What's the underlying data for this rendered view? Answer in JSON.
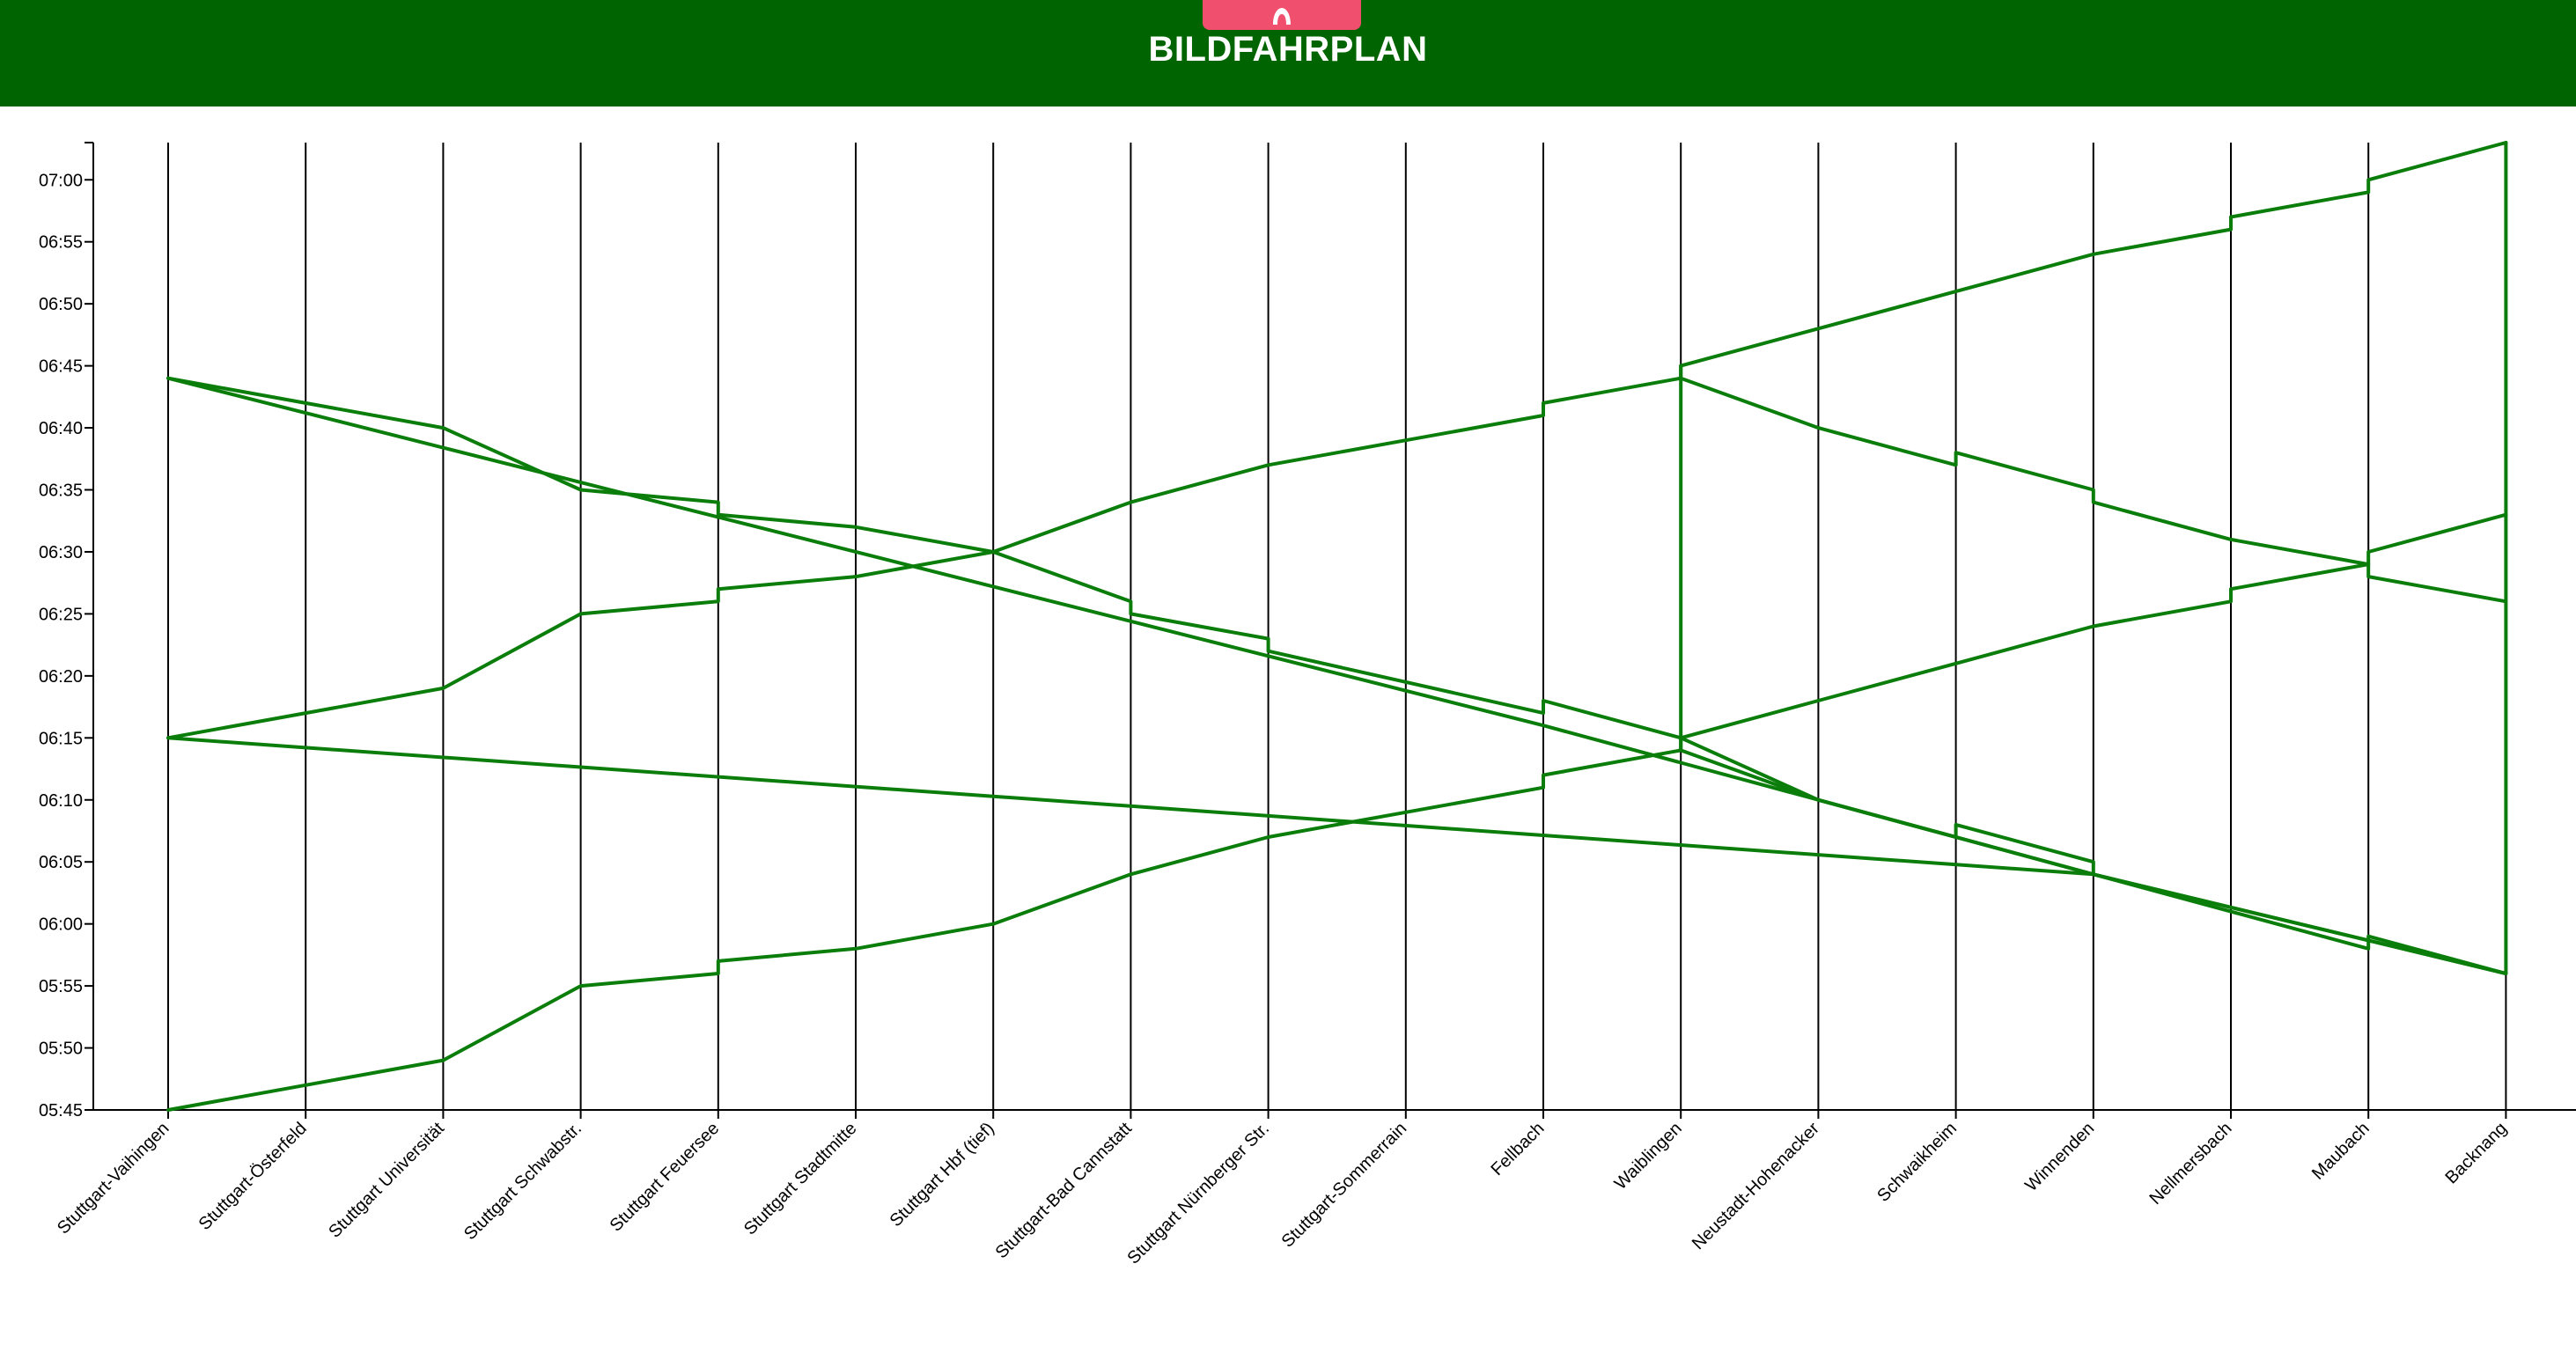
{
  "header": {
    "title": "BILDFAHRPLAN",
    "logo_icon": "tram-logo-icon",
    "background_color": "#006400",
    "logo_color": "#f0506e"
  },
  "chart_data": {
    "type": "line",
    "title": "",
    "xlabel": "",
    "ylabel": "",
    "stations": [
      "Stuttgart-Vaihingen",
      "Stuttgart-Österfeld",
      "Stuttgart Universität",
      "Stuttgart Schwabstr.",
      "Stuttgart Feuersee",
      "Stuttgart Stadtmitte",
      "Stuttgart Hbf (tief)",
      "Stuttgart-Bad Cannstatt",
      "Stuttgart Nürnberger Str.",
      "Stuttgart-Sommerrain",
      "Fellbach",
      "Waiblingen",
      "Neustadt-Hohenacker",
      "Schwaikheim",
      "Winnenden",
      "Nellmersbach",
      "Maubach",
      "Backnang"
    ],
    "y_ticks": [
      "05:45",
      "05:50",
      "05:55",
      "06:00",
      "06:05",
      "06:10",
      "06:15",
      "06:20",
      "06:25",
      "06:30",
      "06:35",
      "06:40",
      "06:45",
      "06:50",
      "06:55",
      "07:00"
    ],
    "ylim": [
      "05:45",
      "07:03"
    ],
    "line_color": "#0a7d0a",
    "grid": "vertical lines at stations",
    "series": [
      {
        "points": [
          [
            "Stuttgart-Vaihingen",
            "05:45"
          ],
          [
            "Stuttgart-Österfeld",
            "05:47"
          ],
          [
            "Stuttgart Universität",
            "05:49"
          ],
          [
            "Stuttgart Schwabstr.",
            "05:55"
          ],
          [
            "Stuttgart Feuersee",
            "05:56"
          ],
          [
            "Stuttgart Feuersee",
            "05:57"
          ],
          [
            "Stuttgart Stadtmitte",
            "05:58"
          ],
          [
            "Stuttgart Hbf (tief)",
            "06:00"
          ],
          [
            "Stuttgart-Bad Cannstatt",
            "06:04"
          ],
          [
            "Stuttgart Nürnberger Str.",
            "06:07"
          ],
          [
            "Stuttgart-Sommerrain",
            "06:09"
          ],
          [
            "Fellbach",
            "06:11"
          ],
          [
            "Fellbach",
            "06:12"
          ],
          [
            "Waiblingen",
            "06:14"
          ],
          [
            "Waiblingen",
            "06:15"
          ],
          [
            "Neustadt-Hohenacker",
            "06:18"
          ],
          [
            "Schwaikheim",
            "06:21"
          ],
          [
            "Winnenden",
            "06:24"
          ],
          [
            "Nellmersbach",
            "06:26"
          ],
          [
            "Nellmersbach",
            "06:27"
          ],
          [
            "Maubach",
            "06:29"
          ],
          [
            "Maubach",
            "06:30"
          ],
          [
            "Backnang",
            "06:33"
          ]
        ]
      },
      {
        "points": [
          [
            "Stuttgart-Vaihingen",
            "06:15"
          ],
          [
            "Stuttgart-Österfeld",
            "06:17"
          ],
          [
            "Stuttgart Universität",
            "06:19"
          ],
          [
            "Stuttgart Schwabstr.",
            "06:25"
          ],
          [
            "Stuttgart Feuersee",
            "06:26"
          ],
          [
            "Stuttgart Feuersee",
            "06:27"
          ],
          [
            "Stuttgart Stadtmitte",
            "06:28"
          ],
          [
            "Stuttgart Hbf (tief)",
            "06:30"
          ],
          [
            "Stuttgart-Bad Cannstatt",
            "06:34"
          ],
          [
            "Stuttgart Nürnberger Str.",
            "06:37"
          ],
          [
            "Stuttgart-Sommerrain",
            "06:39"
          ],
          [
            "Fellbach",
            "06:41"
          ],
          [
            "Fellbach",
            "06:42"
          ],
          [
            "Waiblingen",
            "06:44"
          ],
          [
            "Waiblingen",
            "06:45"
          ],
          [
            "Neustadt-Hohenacker",
            "06:48"
          ],
          [
            "Schwaikheim",
            "06:51"
          ],
          [
            "Winnenden",
            "06:54"
          ],
          [
            "Nellmersbach",
            "06:56"
          ],
          [
            "Nellmersbach",
            "06:57"
          ],
          [
            "Maubach",
            "06:59"
          ],
          [
            "Maubach",
            "07:00"
          ],
          [
            "Backnang",
            "07:03"
          ]
        ]
      },
      {
        "points": [
          [
            "Backnang",
            "05:56"
          ],
          [
            "Maubach",
            "05:59"
          ],
          [
            "Maubach",
            "05:58"
          ],
          [
            "Nellmersbach",
            "06:01"
          ],
          [
            "Winnenden",
            "06:04"
          ],
          [
            "Winnenden",
            "06:05"
          ],
          [
            "Schwaikheim",
            "06:08"
          ],
          [
            "Schwaikheim",
            "06:07"
          ],
          [
            "Neustadt-Hohenacker",
            "06:10"
          ],
          [
            "Waiblingen",
            "06:14"
          ],
          [
            "Waiblingen",
            "06:15"
          ],
          [
            "Fellbach",
            "06:18"
          ],
          [
            "Fellbach",
            "06:17"
          ],
          [
            "Stuttgart Nürnberger Str.",
            "06:22"
          ],
          [
            "Stuttgart Nürnberger Str.",
            "06:23"
          ],
          [
            "Stuttgart-Bad Cannstatt",
            "06:25"
          ],
          [
            "Stuttgart-Bad Cannstatt",
            "06:26"
          ],
          [
            "Stuttgart Hbf (tief)",
            "06:30"
          ],
          [
            "Stuttgart Stadtmitte",
            "06:32"
          ],
          [
            "Stuttgart Feuersee",
            "06:33"
          ],
          [
            "Stuttgart Feuersee",
            "06:34"
          ],
          [
            "Stuttgart Schwabstr.",
            "06:35"
          ],
          [
            "Stuttgart Universität",
            "06:40"
          ],
          [
            "Stuttgart-Vaihingen",
            "06:44"
          ]
        ]
      },
      {
        "points": [
          [
            "Backnang",
            "06:26"
          ],
          [
            "Maubach",
            "06:28"
          ],
          [
            "Maubach",
            "06:29"
          ],
          [
            "Nellmersbach",
            "06:31"
          ],
          [
            "Winnenden",
            "06:34"
          ],
          [
            "Winnenden",
            "06:35"
          ],
          [
            "Schwaikheim",
            "06:38"
          ],
          [
            "Schwaikheim",
            "06:37"
          ],
          [
            "Neustadt-Hohenacker",
            "06:40"
          ],
          [
            "Waiblingen",
            "06:44"
          ],
          [
            "Waiblingen",
            "06:45"
          ],
          [
            "Waiblingen",
            "06:15"
          ],
          [
            "Neustadt-Hohenacker",
            "06:10"
          ],
          [
            "Winnenden",
            "06:04"
          ],
          [
            "Backnang",
            "05:56"
          ],
          [
            "Backnang",
            "07:03"
          ]
        ]
      },
      {
        "points": [
          [
            "Stuttgart-Vaihingen",
            "06:15"
          ],
          [
            "Winnenden",
            "06:04"
          ],
          [
            "Backnang",
            "05:56"
          ]
        ]
      },
      {
        "points": [
          [
            "Stuttgart-Vaihingen",
            "06:44"
          ],
          [
            "Fellbach",
            "06:16"
          ],
          [
            "Waiblingen",
            "06:13"
          ],
          [
            "Winnenden",
            "06:04"
          ]
        ]
      }
    ]
  }
}
